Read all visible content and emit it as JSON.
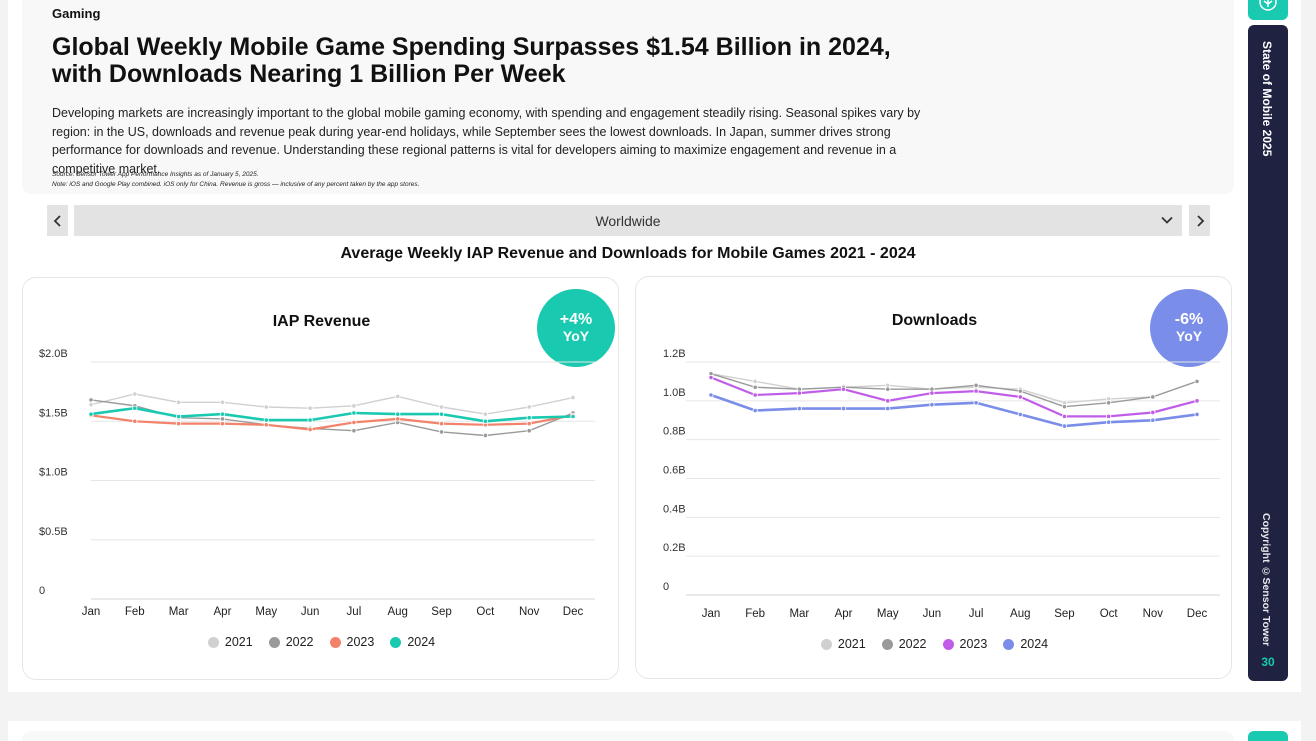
{
  "header": {
    "section": "Gaming",
    "title": "Global Weekly Mobile Game Spending Surpasses $1.54 Billion in 2024, with Downloads Nearing 1 Billion Per Week",
    "description": "Developing markets are increasingly important to the global mobile gaming economy, with spending and engagement steadily rising. Seasonal spikes vary by region: in the US, downloads and revenue peak during year-end holidays, while September sees the lowest downloads. In Japan, summer drives strong performance for downloads and revenue. Understanding these regional patterns is vital for developers aiming to maximize engagement and revenue in a competitive market.",
    "source": "Source: Sensor Tower App Performance Insights as of January 5, 2025.",
    "note": "Note: iOS and Google Play combined. iOS only for China. Revenue is gross — inclusive of any percent taken by the app stores."
  },
  "region": {
    "selected": "Worldwide",
    "prev_icon": "chevron-left-icon",
    "next_icon": "chevron-right-icon",
    "dropdown_icon": "chevron-down-icon"
  },
  "chart_heading": "Average Weekly IAP Revenue and Downloads  for Mobile Games  2021 - 2024",
  "chart_data": [
    {
      "type": "line",
      "title": "IAP Revenue",
      "badge": {
        "value": "+4%",
        "label": "YoY",
        "color": "#19c9b0"
      },
      "x": [
        "Jan",
        "Feb",
        "Mar",
        "Apr",
        "May",
        "Jun",
        "Jul",
        "Aug",
        "Sep",
        "Oct",
        "Nov",
        "Dec"
      ],
      "ylim": [
        0,
        2.0
      ],
      "yticks": [
        0,
        0.5,
        1.0,
        1.5,
        2.0
      ],
      "ytick_labels": [
        "0",
        "$0.5B",
        "$1.0B",
        "$1.5B",
        "$2.0B"
      ],
      "grid": true,
      "legend_position": "bottom",
      "series": [
        {
          "name": "2021",
          "color": "#d0d0d0",
          "values": [
            1.64,
            1.73,
            1.66,
            1.66,
            1.62,
            1.61,
            1.63,
            1.71,
            1.62,
            1.56,
            1.62,
            1.7
          ]
        },
        {
          "name": "2022",
          "color": "#9a9a9a",
          "values": [
            1.68,
            1.63,
            1.53,
            1.52,
            1.47,
            1.44,
            1.42,
            1.49,
            1.41,
            1.38,
            1.42,
            1.57
          ]
        },
        {
          "name": "2023",
          "color": "#f2826a",
          "values": [
            1.55,
            1.5,
            1.48,
            1.48,
            1.47,
            1.43,
            1.49,
            1.52,
            1.48,
            1.47,
            1.48,
            1.55
          ]
        },
        {
          "name": "2024",
          "color": "#19c9b0",
          "values": [
            1.56,
            1.61,
            1.54,
            1.56,
            1.51,
            1.51,
            1.57,
            1.56,
            1.56,
            1.5,
            1.53,
            1.54
          ]
        }
      ]
    },
    {
      "type": "line",
      "title": "Downloads",
      "badge": {
        "value": "-6%",
        "label": "YoY",
        "color": "#7a8de8"
      },
      "x": [
        "Jan",
        "Feb",
        "Mar",
        "Apr",
        "May",
        "Jun",
        "Jul",
        "Aug",
        "Sep",
        "Oct",
        "Nov",
        "Dec"
      ],
      "ylim": [
        0,
        1.2
      ],
      "yticks": [
        0,
        0.2,
        0.4,
        0.6,
        0.8,
        1.0,
        1.2
      ],
      "ytick_labels": [
        "0",
        "0.2B",
        "0.4B",
        "0.6B",
        "0.8B",
        "1.0B",
        "1.2B"
      ],
      "grid": true,
      "legend_position": "bottom",
      "series": [
        {
          "name": "2021",
          "color": "#d0d0d0",
          "values": [
            1.14,
            1.1,
            1.06,
            1.07,
            1.08,
            1.06,
            1.07,
            1.06,
            0.99,
            1.01,
            1.02,
            1.1
          ]
        },
        {
          "name": "2022",
          "color": "#9a9a9a",
          "values": [
            1.14,
            1.07,
            1.06,
            1.07,
            1.06,
            1.06,
            1.08,
            1.05,
            0.97,
            0.99,
            1.02,
            1.1
          ]
        },
        {
          "name": "2023",
          "color": "#c05de8",
          "values": [
            1.12,
            1.03,
            1.04,
            1.06,
            1.0,
            1.04,
            1.05,
            1.02,
            0.92,
            0.92,
            0.94,
            1.0
          ]
        },
        {
          "name": "2024",
          "color": "#7a8de8",
          "values": [
            1.03,
            0.95,
            0.96,
            0.96,
            0.96,
            0.98,
            0.99,
            0.93,
            0.87,
            0.89,
            0.9,
            0.93
          ]
        }
      ]
    }
  ],
  "sidebar": {
    "report_title": "State of Mobile 2025",
    "copyright": "Copyright ©Sensor Tower",
    "page_number": "30",
    "logo_icon": "sensor-tower-logo-icon"
  }
}
